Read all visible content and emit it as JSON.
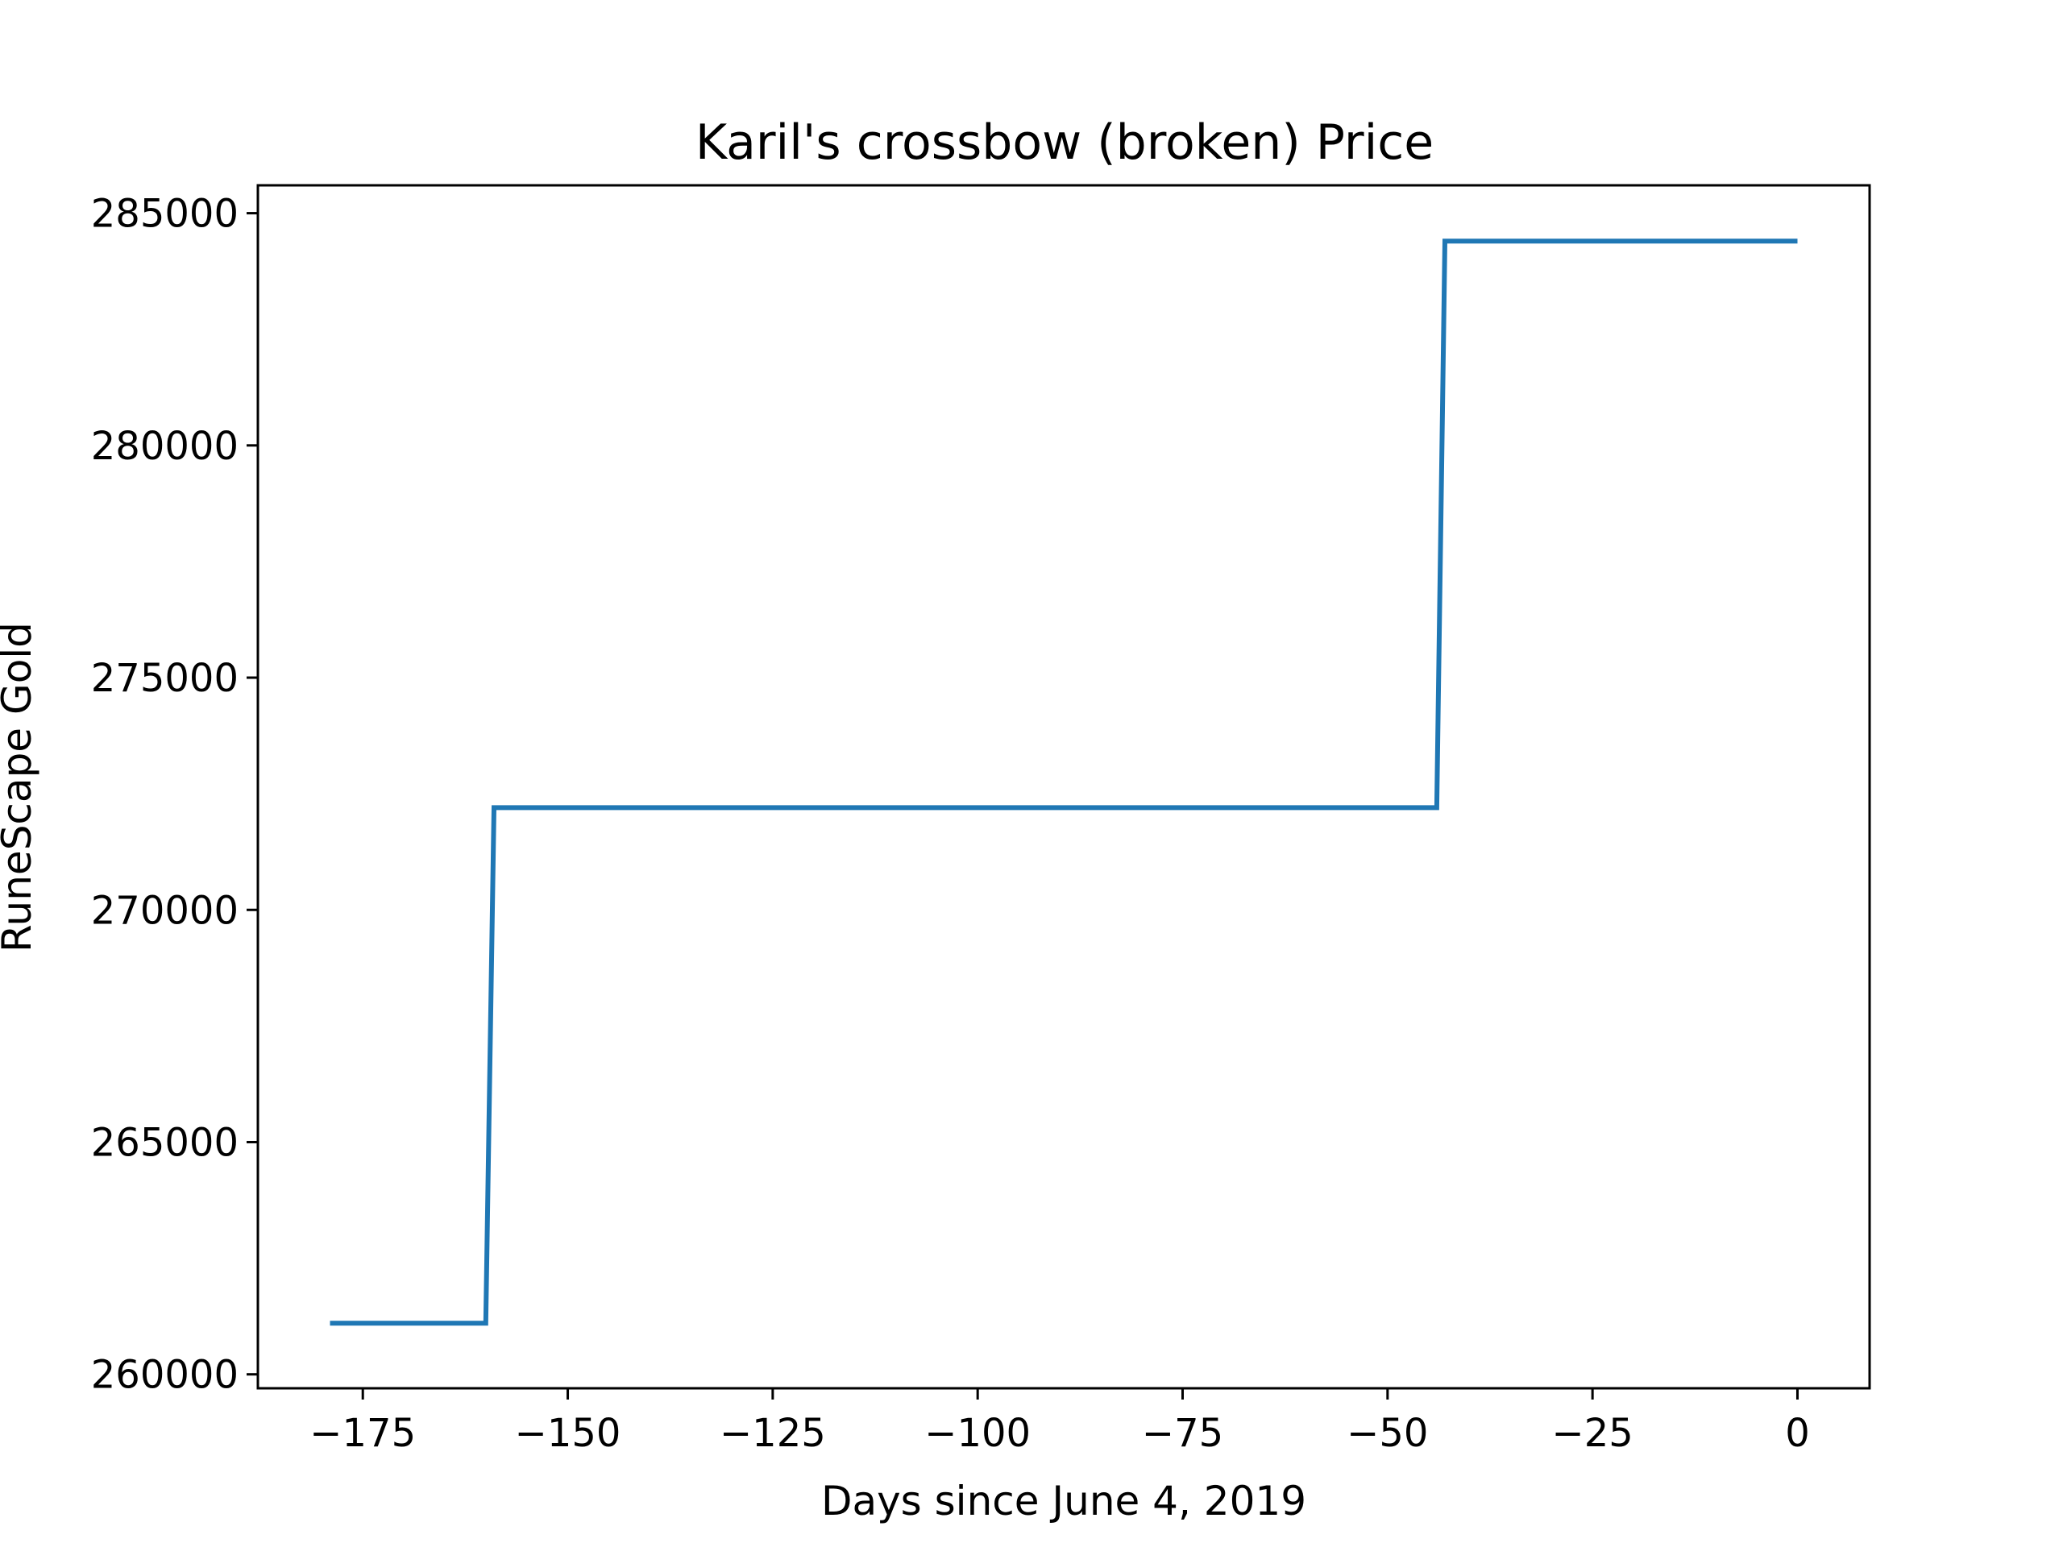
{
  "chart_data": {
    "type": "line",
    "title": "Karil's crossbow (broken) Price",
    "xlabel": "Days since June 4, 2019",
    "ylabel": "RuneScape Gold",
    "xlim": [
      -187.8,
      8.8
    ],
    "ylim": [
      259700,
      285600
    ],
    "xticks": [
      -175,
      -150,
      -125,
      -100,
      -75,
      -50,
      -25,
      0
    ],
    "xtick_labels": [
      "−175",
      "−150",
      "−125",
      "−100",
      "−75",
      "−50",
      "−25",
      "0"
    ],
    "yticks": [
      260000,
      265000,
      270000,
      275000,
      280000,
      285000
    ],
    "ytick_labels": [
      "260000",
      "265000",
      "270000",
      "275000",
      "280000",
      "285000"
    ],
    "grid": false,
    "legend": "none",
    "series": [
      {
        "color": "#1f77b4",
        "x": [
          -179,
          -160,
          -159,
          -44,
          -43,
          0
        ],
        "y": [
          261100,
          261100,
          272200,
          272200,
          284400,
          284400
        ]
      }
    ]
  }
}
